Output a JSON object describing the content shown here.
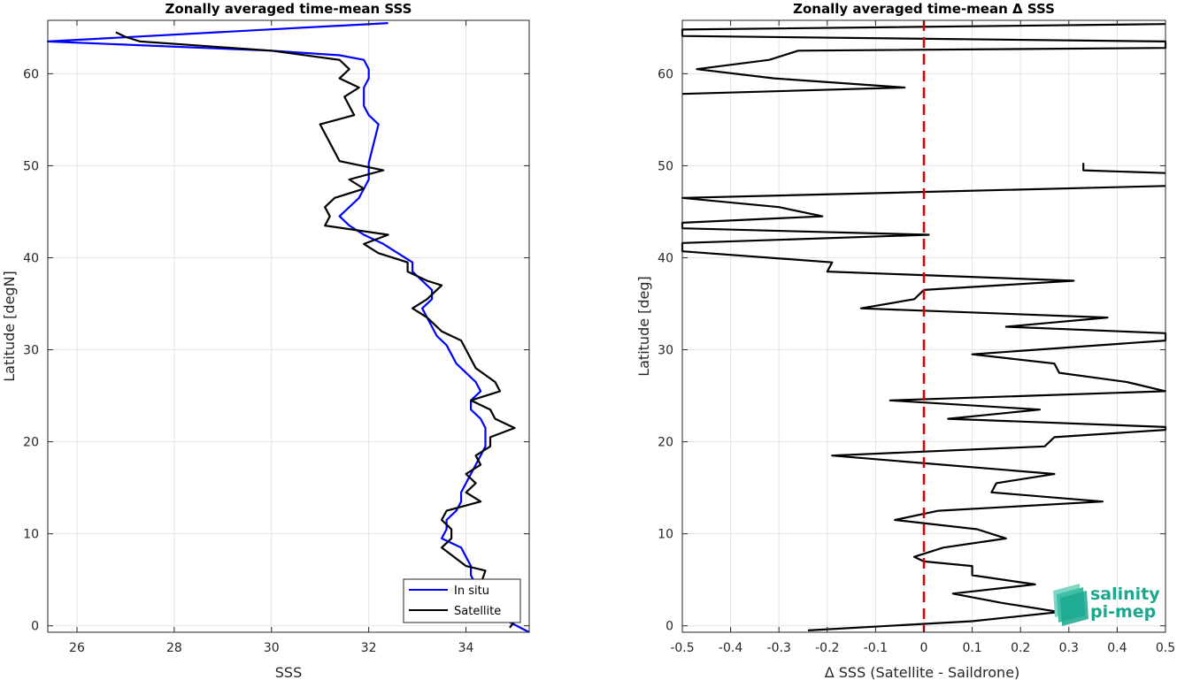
{
  "chart_data": [
    {
      "type": "line",
      "title": "Zonally averaged time-mean SSS",
      "xlabel": "SSS",
      "ylabel": "Latitude [degN]",
      "xlim": [
        25.4,
        35.3
      ],
      "ylim": [
        -0.7,
        65.8
      ],
      "xticks": [
        26,
        28,
        30,
        32,
        34
      ],
      "xtick_labels": [
        "26",
        "28",
        "30",
        "32",
        "34"
      ],
      "yticks": [
        0,
        10,
        20,
        30,
        40,
        50,
        60
      ],
      "ytick_labels": [
        "0",
        "10",
        "20",
        "30",
        "40",
        "50",
        "60"
      ],
      "grid": true,
      "legend": {
        "placement": "bottom-right",
        "entries": [
          "In situ",
          "Satellite"
        ]
      },
      "series": [
        {
          "name": "In situ",
          "color": "#0000ff",
          "points": [
            [
              35.3,
              -0.7
            ],
            [
              34.9,
              0.4
            ],
            [
              34.8,
              1.5
            ],
            [
              34.5,
              2.5
            ],
            [
              34.3,
              3.5
            ],
            [
              34.2,
              4.5
            ],
            [
              34.1,
              5.5
            ],
            [
              34.1,
              6.5
            ],
            [
              34.0,
              7.5
            ],
            [
              33.9,
              8.5
            ],
            [
              33.5,
              9.5
            ],
            [
              33.6,
              10.5
            ],
            [
              33.6,
              11.5
            ],
            [
              33.8,
              12.5
            ],
            [
              33.9,
              13.5
            ],
            [
              33.9,
              14.5
            ],
            [
              34.0,
              15.5
            ],
            [
              34.1,
              16.5
            ],
            [
              34.2,
              17.5
            ],
            [
              34.3,
              18.5
            ],
            [
              34.4,
              19.5
            ],
            [
              34.4,
              20.5
            ],
            [
              34.4,
              21.5
            ],
            [
              34.3,
              22.5
            ],
            [
              34.1,
              23.5
            ],
            [
              34.1,
              24.5
            ],
            [
              34.3,
              25.5
            ],
            [
              34.2,
              26.5
            ],
            [
              34.0,
              27.5
            ],
            [
              33.8,
              28.5
            ],
            [
              33.7,
              29.5
            ],
            [
              33.6,
              30.5
            ],
            [
              33.4,
              31.5
            ],
            [
              33.3,
              32.5
            ],
            [
              33.2,
              33.5
            ],
            [
              33.1,
              34.5
            ],
            [
              33.3,
              35.5
            ],
            [
              33.3,
              36.5
            ],
            [
              33.1,
              37.5
            ],
            [
              32.9,
              38.5
            ],
            [
              32.9,
              39.5
            ],
            [
              32.6,
              40.5
            ],
            [
              32.3,
              41.5
            ],
            [
              31.9,
              42.5
            ],
            [
              31.6,
              43.5
            ],
            [
              31.4,
              44.5
            ],
            [
              31.6,
              45.5
            ],
            [
              31.8,
              46.5
            ],
            [
              31.9,
              47.5
            ],
            [
              32.0,
              48.5
            ],
            [
              32.0,
              49.5
            ],
            [
              32.0,
              50.3
            ],
            [
              32.2,
              54.5
            ],
            [
              32.0,
              55.5
            ],
            [
              31.9,
              56.5
            ],
            [
              31.9,
              57.5
            ],
            [
              31.9,
              58.5
            ],
            [
              32.0,
              59.5
            ],
            [
              32.0,
              60.5
            ],
            [
              31.9,
              61.5
            ],
            [
              31.4,
              62.0
            ],
            [
              30.0,
              62.5
            ],
            [
              25.4,
              63.5
            ],
            [
              32.4,
              65.5
            ]
          ]
        },
        {
          "name": "Satellite",
          "color": "#000000",
          "points": [
            [
              34.9,
              -0.2
            ],
            [
              35.0,
              0.5
            ],
            [
              34.8,
              1.5
            ],
            [
              34.4,
              2.5
            ],
            [
              34.2,
              3.5
            ],
            [
              34.3,
              4.5
            ],
            [
              34.4,
              6.0
            ],
            [
              34.0,
              6.5
            ],
            [
              33.5,
              8.5
            ],
            [
              33.7,
              9.5
            ],
            [
              33.7,
              10.5
            ],
            [
              33.5,
              11.5
            ],
            [
              33.6,
              12.5
            ],
            [
              34.3,
              13.5
            ],
            [
              34.0,
              14.5
            ],
            [
              34.2,
              15.5
            ],
            [
              34.0,
              16.5
            ],
            [
              34.3,
              17.5
            ],
            [
              34.2,
              18.5
            ],
            [
              34.5,
              19.5
            ],
            [
              34.5,
              20.5
            ],
            [
              35.0,
              21.5
            ],
            [
              34.6,
              22.5
            ],
            [
              34.5,
              23.5
            ],
            [
              34.1,
              24.5
            ],
            [
              34.7,
              25.5
            ],
            [
              34.6,
              26.5
            ],
            [
              34.2,
              28.0
            ],
            [
              34.0,
              30.0
            ],
            [
              33.9,
              31.0
            ],
            [
              33.5,
              32.0
            ],
            [
              33.2,
              33.5
            ],
            [
              32.9,
              34.5
            ],
            [
              33.2,
              35.5
            ],
            [
              33.5,
              37.0
            ],
            [
              33.2,
              37.5
            ],
            [
              32.8,
              38.5
            ],
            [
              32.8,
              39.5
            ],
            [
              32.2,
              40.5
            ],
            [
              31.9,
              41.5
            ],
            [
              32.4,
              42.5
            ],
            [
              31.1,
              43.5
            ],
            [
              31.2,
              44.5
            ],
            [
              31.1,
              45.5
            ],
            [
              31.3,
              46.5
            ],
            [
              31.9,
              47.5
            ],
            [
              31.6,
              48.5
            ],
            [
              32.3,
              49.5
            ],
            [
              31.4,
              50.5
            ],
            [
              31.0,
              54.5
            ],
            [
              31.7,
              55.5
            ],
            [
              31.5,
              57.5
            ],
            [
              31.8,
              58.5
            ],
            [
              31.4,
              59.5
            ],
            [
              31.6,
              60.5
            ],
            [
              31.4,
              61.5
            ],
            [
              30.0,
              62.5
            ],
            [
              27.3,
              63.5
            ],
            [
              27.0,
              64.0
            ],
            [
              26.8,
              64.5
            ]
          ]
        }
      ]
    },
    {
      "type": "line",
      "title": "Zonally averaged time-mean Δ SSS",
      "xlabel": "Δ SSS (Satellite - Saildrone)",
      "ylabel": "Latitude [deg]",
      "xlim": [
        -0.5,
        0.5
      ],
      "ylim": [
        -0.7,
        65.8
      ],
      "xticks": [
        -0.5,
        -0.4,
        -0.3,
        -0.2,
        -0.1,
        0,
        0.1,
        0.2,
        0.3,
        0.4,
        0.5
      ],
      "xtick_labels": [
        "-0.5",
        "-0.4",
        "-0.3",
        "-0.2",
        "-0.1",
        "0",
        "0.1",
        "0.2",
        "0.3",
        "0.4",
        "0.5"
      ],
      "yticks": [
        0,
        10,
        20,
        30,
        40,
        50,
        60
      ],
      "ytick_labels": [
        "0",
        "10",
        "20",
        "30",
        "40",
        "50",
        "60"
      ],
      "grid": true,
      "reference_line": {
        "x": 0,
        "color": "#dd0000",
        "style": "dashed"
      },
      "series": [
        {
          "color": "#000000",
          "points": [
            [
              -0.24,
              -0.5
            ],
            [
              0.1,
              0.5
            ],
            [
              0.28,
              1.5
            ],
            [
              0.16,
              2.5
            ],
            [
              0.06,
              3.5
            ],
            [
              0.23,
              4.5
            ],
            [
              0.1,
              5.5
            ],
            [
              0.1,
              6.5
            ],
            [
              0.0,
              7.0
            ],
            [
              -0.02,
              7.5
            ],
            [
              0.04,
              8.5
            ],
            [
              0.17,
              9.5
            ],
            [
              0.11,
              10.5
            ],
            [
              -0.06,
              11.5
            ],
            [
              0.03,
              12.5
            ],
            [
              0.37,
              13.5
            ],
            [
              0.14,
              14.5
            ],
            [
              0.15,
              15.5
            ],
            [
              0.27,
              16.5
            ],
            [
              -0.19,
              18.5
            ],
            [
              0.25,
              19.5
            ],
            [
              0.27,
              20.5
            ],
            [
              0.5,
              21.3
            ],
            [
              0.5,
              21.6
            ],
            [
              0.05,
              22.5
            ],
            [
              0.24,
              23.5
            ],
            [
              -0.07,
              24.5
            ],
            [
              0.5,
              25.5
            ],
            [
              0.42,
              26.5
            ],
            [
              0.28,
              27.5
            ],
            [
              0.27,
              28.5
            ],
            [
              0.1,
              29.5
            ],
            [
              0.5,
              31.0
            ],
            [
              0.5,
              31.8
            ],
            [
              0.17,
              32.5
            ],
            [
              0.38,
              33.5
            ],
            [
              -0.13,
              34.5
            ],
            [
              -0.02,
              35.5
            ],
            [
              0.0,
              36.5
            ],
            [
              0.31,
              37.5
            ],
            [
              -0.2,
              38.5
            ],
            [
              -0.19,
              39.5
            ],
            [
              -0.5,
              40.7
            ],
            [
              -0.5,
              41.6
            ],
            [
              0.01,
              42.5
            ],
            [
              -0.5,
              43.2
            ],
            [
              -0.5,
              43.8
            ],
            [
              -0.21,
              44.5
            ],
            [
              -0.3,
              45.5
            ],
            [
              -0.5,
              46.5
            ],
            [
              0.5,
              47.8
            ]
          ]
        },
        {
          "color": "#000000",
          "points": [
            [
              0.33,
              50.3
            ],
            [
              0.33,
              49.5
            ],
            [
              0.5,
              49.2
            ]
          ]
        },
        {
          "color": "#000000",
          "points": [
            [
              -0.5,
              57.8
            ],
            [
              -0.04,
              58.5
            ],
            [
              -0.31,
              59.5
            ],
            [
              -0.47,
              60.5
            ],
            [
              -0.32,
              61.5
            ],
            [
              -0.26,
              62.5
            ],
            [
              0.5,
              62.8
            ],
            [
              0.5,
              63.5
            ],
            [
              -0.5,
              64.1
            ],
            [
              -0.5,
              64.8
            ],
            [
              0.5,
              65.4
            ]
          ]
        }
      ]
    }
  ],
  "logo": {
    "line1": "salinity",
    "line2": "pi-mep"
  }
}
